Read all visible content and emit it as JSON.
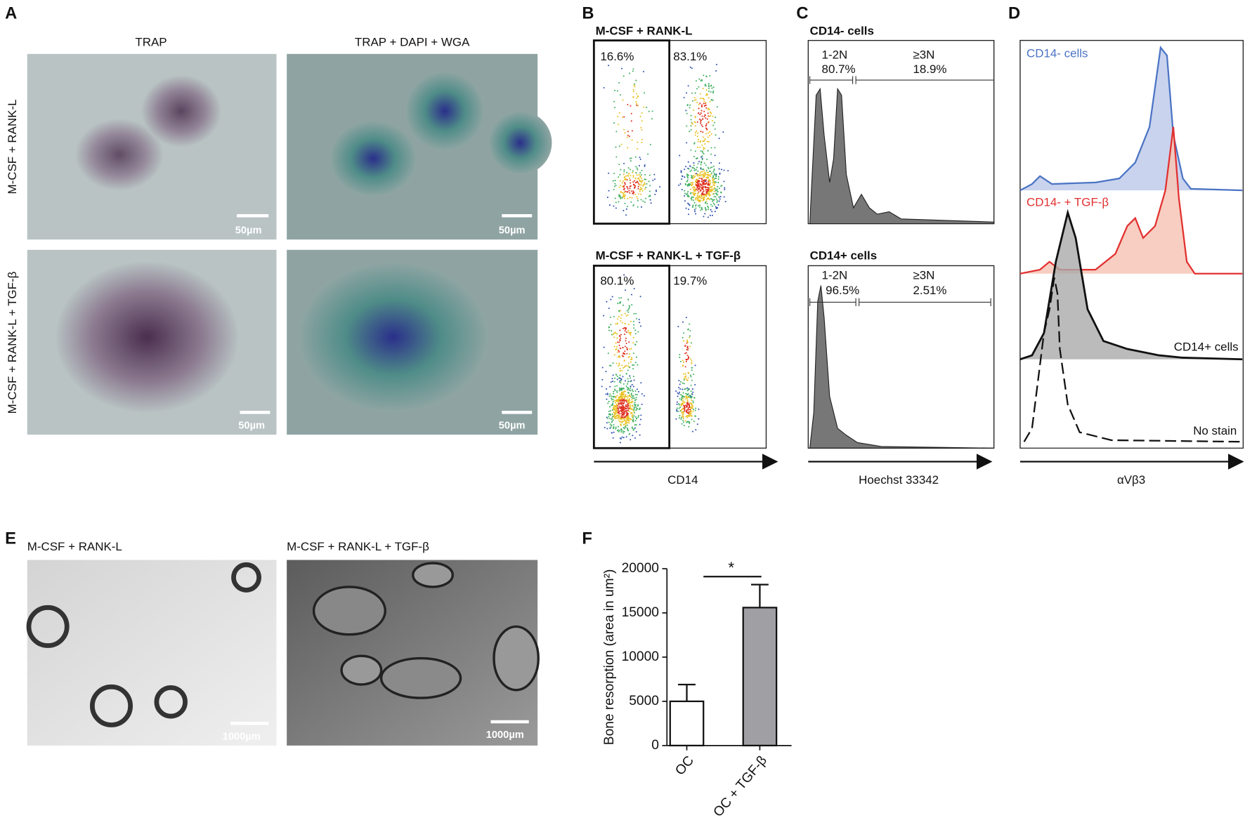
{
  "panels": {
    "A": {
      "letter": "A",
      "columns": [
        "TRAP",
        "TRAP + DAPI + WGA"
      ],
      "rows": [
        "M-CSF + RANK-L",
        "M-CSF + RANK-L + TGF-β"
      ],
      "scale_bar": "50µm"
    },
    "B": {
      "letter": "B",
      "plots": [
        {
          "title": "M-CSF + RANK-L",
          "gates": [
            "16.6%",
            "83.1%"
          ]
        },
        {
          "title": "M-CSF + RANK-L + TGF-β",
          "gates": [
            "80.1%",
            "19.7%"
          ]
        }
      ],
      "axis_label": "CD14"
    },
    "C": {
      "letter": "C",
      "plots": [
        {
          "title": "CD14- cells",
          "gates": [
            {
              "name": "1-2N",
              "value": "80.7%"
            },
            {
              "name": "≥3N",
              "value": "18.9%"
            }
          ]
        },
        {
          "title": "CD14+ cells",
          "gates": [
            {
              "name": "1-2N",
              "value": "96.5%"
            },
            {
              "name": "≥3N",
              "value": "2.51%"
            }
          ]
        }
      ],
      "axis_label": "Hoechst 33342"
    },
    "D": {
      "letter": "D",
      "traces": [
        "CD14- cells",
        "CD14- + TGF-β",
        "CD14+ cells",
        "No stain"
      ],
      "axis_label": "αVβ3"
    },
    "E": {
      "letter": "E",
      "images": [
        "M-CSF + RANK-L",
        "M-CSF + RANK-L + TGF-β"
      ],
      "scale_bar": "1000µm"
    },
    "F": {
      "letter": "F"
    }
  },
  "chart_data": {
    "type": "bar",
    "categories": [
      "OC",
      "OC + TGF-β"
    ],
    "values": [
      5000,
      15600
    ],
    "errors": [
      1900,
      2600
    ],
    "colors": [
      "#ffffff",
      "#a0a0a4"
    ],
    "y_label": "Bone resorption (area in um²)",
    "ylim": [
      0,
      20000
    ],
    "yticks": [
      0,
      5000,
      10000,
      15000,
      20000
    ],
    "annotations": [
      "*"
    ]
  }
}
